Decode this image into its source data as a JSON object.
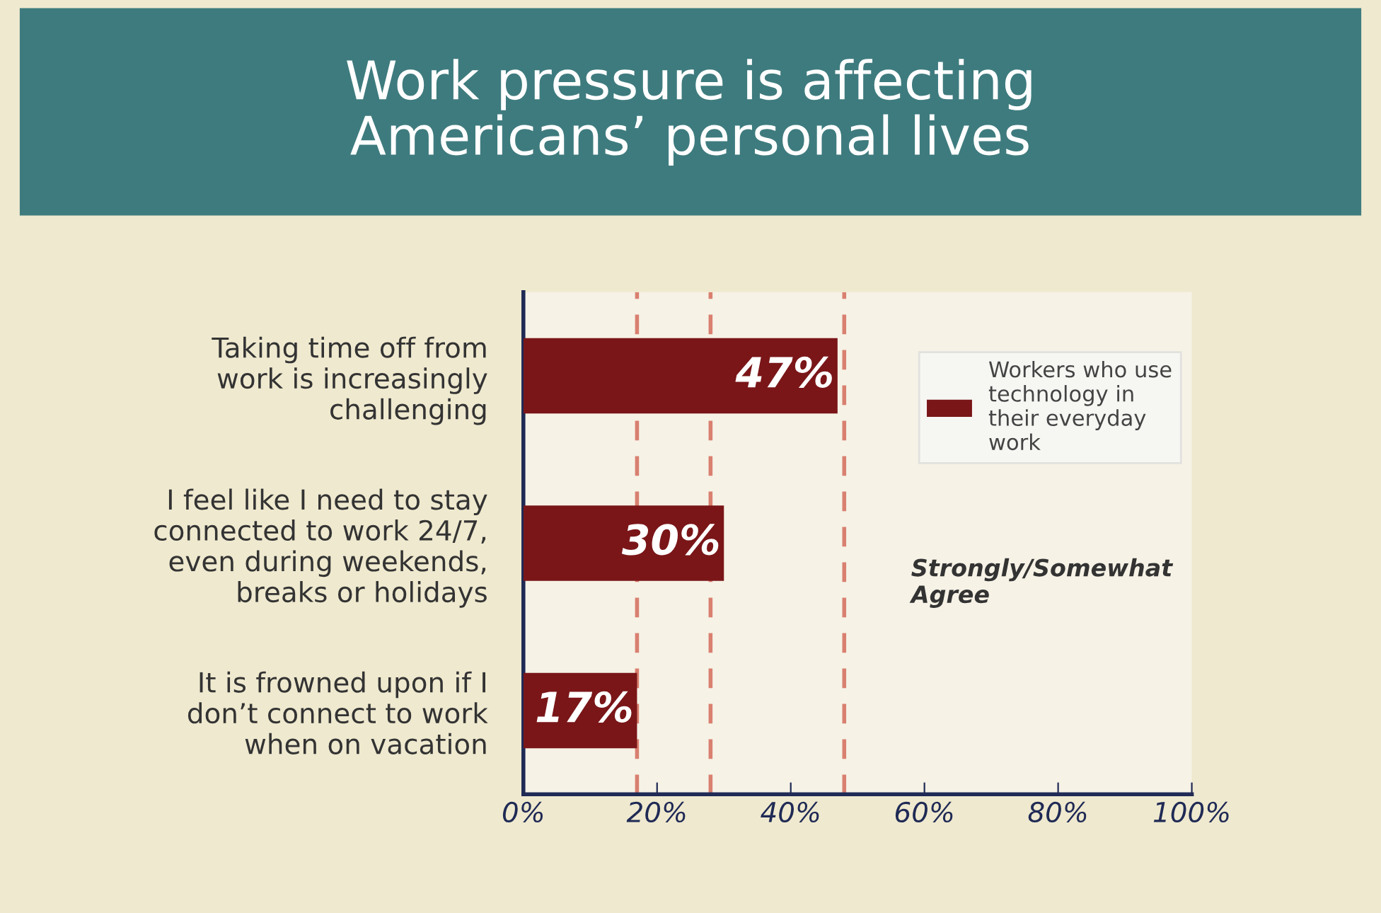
{
  "chart_data": {
    "type": "bar",
    "orientation": "horizontal",
    "title": "Work pressure is affecting\nAmericans’ personal lives",
    "categories": [
      "Taking time off from\nwork is increasingly\nchallenging",
      "I feel like I need to stay\nconnected to work 24/7,\neven during weekends,\nbreaks or holidays",
      "It is frowned upon if I\ndon’t connect to work\nwhen on vacation"
    ],
    "series": [
      {
        "name": "Workers who use\ntechnology in\ntheir everyday\nwork",
        "color": "#7a1618",
        "values": [
          47,
          30,
          17
        ]
      }
    ],
    "value_labels": [
      "47%",
      "30%",
      "17%"
    ],
    "xlim": [
      0,
      100
    ],
    "xticks": [
      {
        "value": 0,
        "label": "0%"
      },
      {
        "value": 20,
        "label": "20%"
      },
      {
        "value": 40,
        "label": "40%"
      },
      {
        "value": 60,
        "label": "60%"
      },
      {
        "value": 80,
        "label": "80%"
      },
      {
        "value": 100,
        "label": "100%"
      }
    ],
    "ref_lines": [
      {
        "axis": "x",
        "value": 17,
        "color": "#d98070",
        "line_style": "dashed"
      },
      {
        "axis": "x",
        "value": 28,
        "color": "#d98070",
        "line_style": "dashed"
      },
      {
        "axis": "x",
        "value": 48,
        "color": "#d98070",
        "line_style": "dashed"
      }
    ],
    "annotations": [
      "Strongly/Somewhat\nAgree"
    ],
    "legend": "right",
    "grid": false
  }
}
